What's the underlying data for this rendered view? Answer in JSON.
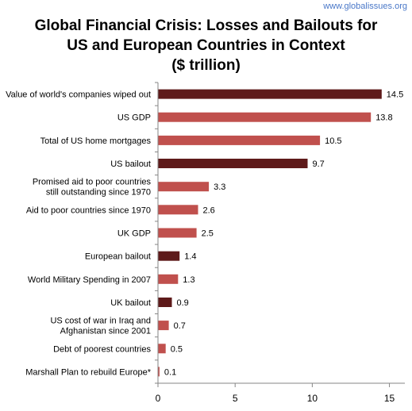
{
  "watermark": "www.globalissues.org",
  "title_lines": [
    "Global Financial Crisis: Losses and Bailouts for",
    "US and European Countries in Context",
    "($ trillion)"
  ],
  "colors": {
    "dark": "#5e1a1a",
    "light": "#c0504d",
    "axis": "#868686"
  },
  "chart_data": {
    "type": "bar",
    "orientation": "horizontal",
    "title": "Global Financial Crisis: Losses and Bailouts for US and European Countries in Context ($ trillion)",
    "categories": [
      [
        "Value of world's companies wiped out"
      ],
      [
        "US GDP"
      ],
      [
        "Total of US home mortgages"
      ],
      [
        "US bailout"
      ],
      [
        "Promised aid to poor countries",
        "still outstanding since 1970"
      ],
      [
        "Aid to poor countries since 1970"
      ],
      [
        "UK GDP"
      ],
      [
        "European bailout"
      ],
      [
        "World Military Spending in 2007"
      ],
      [
        "UK bailout"
      ],
      [
        "US cost of war in Iraq and",
        "Afghanistan since 2001"
      ],
      [
        "Debt of poorest countries"
      ],
      [
        "Marshall Plan to rebuild Europe*"
      ]
    ],
    "values": [
      14.5,
      13.8,
      10.5,
      9.7,
      3.3,
      2.6,
      2.5,
      1.4,
      1.3,
      0.9,
      0.7,
      0.5,
      0.1
    ],
    "value_labels": [
      "14.5",
      "13.8",
      "10.5",
      "9.7",
      "3.3",
      "2.6",
      "2.5",
      "1.4",
      "1.3",
      "0.9",
      "0.7",
      "0.5",
      "0.1"
    ],
    "bar_shade": [
      "dark",
      "light",
      "light",
      "dark",
      "light",
      "light",
      "light",
      "dark",
      "light",
      "dark",
      "light",
      "light",
      "light"
    ],
    "xlim": [
      0,
      16
    ],
    "xticks": [
      0,
      5,
      10,
      15
    ],
    "xtick_labels": [
      "0",
      "5",
      "10",
      "15"
    ],
    "grid": false,
    "legend": "none"
  }
}
